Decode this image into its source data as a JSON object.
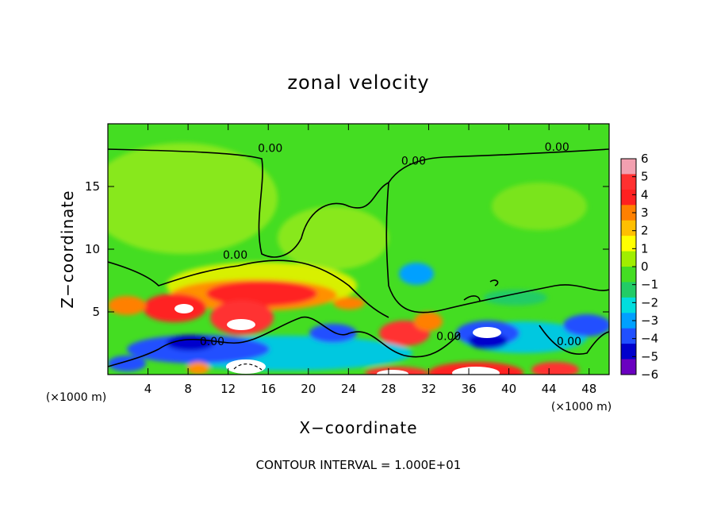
{
  "chart_data": {
    "type": "heatmap",
    "title": "zonal velocity",
    "xlabel": "X−coordinate",
    "ylabel": "Z−coordinate",
    "x_unit_left": "(×1000 m)",
    "x_unit_right": "(×1000 m)",
    "xlim": [
      0,
      50
    ],
    "ylim": [
      0,
      20
    ],
    "x_ticks": [
      4,
      8,
      12,
      16,
      20,
      24,
      28,
      32,
      36,
      40,
      44,
      48
    ],
    "x_tick_labels": [
      "4",
      "8",
      "12",
      "16",
      "20",
      "24",
      "28",
      "32",
      "36",
      "40",
      "44",
      "48"
    ],
    "y_ticks": [
      5,
      10,
      15
    ],
    "y_tick_labels": [
      "5",
      "10",
      "15"
    ],
    "colorbar": {
      "range": [
        -6,
        6
      ],
      "tick_labels": [
        "6",
        "5",
        "4",
        "3",
        "2",
        "1",
        "0",
        "−1",
        "−2",
        "−3",
        "−4",
        "−5",
        "−6"
      ],
      "colors": [
        "#f2a0b0",
        "#ff3030",
        "#ff2020",
        "#ff8000",
        "#ffbf00",
        "#ffff00",
        "#a0ee00",
        "#44dd22",
        "#22cc66",
        "#00dddd",
        "#00a0ff",
        "#2050ff",
        "#0000cc",
        "#6a00c0"
      ]
    },
    "contour_labels": [
      {
        "text": "0.00",
        "x": 16.2,
        "z": 18.0
      },
      {
        "text": "0.00",
        "x": 30.5,
        "z": 17.0
      },
      {
        "text": "0.00",
        "x": 44.8,
        "z": 18.1
      },
      {
        "text": "0.00",
        "x": 12.7,
        "z": 9.5
      },
      {
        "text": "0.00",
        "x": 10.4,
        "z": 2.6
      },
      {
        "text": "0.00",
        "x": 34.0,
        "z": 3.0
      },
      {
        "text": "0.00",
        "x": 46.0,
        "z": 2.6
      }
    ],
    "footer": "CONTOUR INTERVAL = 1.000E+01"
  }
}
